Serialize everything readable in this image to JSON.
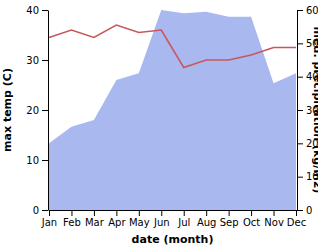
{
  "chart_data": {
    "type": "line",
    "x_label": "date (month)",
    "y_label": "max temp (C)",
    "y2_label": "med. precipitation (kg/m2)",
    "categories": [
      "Jan",
      "Feb",
      "Mar",
      "Apr",
      "May",
      "Jun",
      "Jul",
      "Aug",
      "Sep",
      "Oct",
      "Nov",
      "Dec"
    ],
    "series": [
      {
        "name": "max temp",
        "type": "line",
        "color": "#c8575b",
        "values": [
          34.5,
          36,
          34.5,
          37,
          35.5,
          36,
          28.5,
          30,
          30,
          31,
          32.5,
          32.5
        ]
      },
      {
        "name": "med. precipitation",
        "type": "area",
        "axis": "y2",
        "color": "#aab8f0",
        "values": [
          20,
          25,
          27,
          39,
          41,
          60,
          59,
          59.5,
          58,
          58,
          38,
          41
        ]
      }
    ],
    "ylim": [
      0,
      40
    ],
    "yticks": [
      0,
      10,
      20,
      30,
      40
    ],
    "y2lim": [
      0,
      60
    ],
    "y2ticks": [
      0,
      10,
      20,
      30,
      40,
      50,
      60
    ]
  }
}
